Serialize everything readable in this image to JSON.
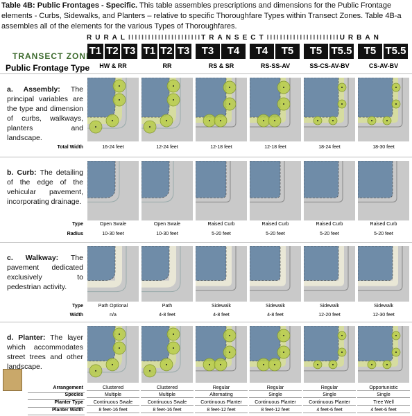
{
  "header": {
    "title": "Table 4B:  Public Frontages - Specific.",
    "text": "This table assembles prescriptions and dimensions for the Public Frontage elements - Curbs, Sidewalks, and Planters – relative to specific Thoroughfare Types within Transect Zones.  Table 4B-a assembles all of the elements for the various Types of Thoroughfares."
  },
  "transect": {
    "rural": "RURAL",
    "transect": "TRANSECT",
    "urban": "URBAN"
  },
  "zone_label": "TRANSECT ZONE",
  "frontage_label": "Public Frontage Type",
  "columns": [
    {
      "zones": [
        "T1",
        "T2",
        "T3"
      ],
      "type": "HW & RR"
    },
    {
      "zones": [
        "T1",
        "T2",
        "T3"
      ],
      "type": "RR"
    },
    {
      "zones": [
        "T3",
        "T4"
      ],
      "type": "RS & SR"
    },
    {
      "zones": [
        "T4",
        "T5"
      ],
      "type": "RS-SS-AV"
    },
    {
      "zones": [
        "T5",
        "T5.5"
      ],
      "type": "SS-CS-AV-BV"
    },
    {
      "zones": [
        "T5",
        "T5.5"
      ],
      "type": "CS-AV-BV"
    }
  ],
  "sections": [
    {
      "title": "a. Assembly:",
      "text": "The principal variables are the type and dimension of curbs, walkways, planters and landscape.",
      "rows": [
        {
          "label": "Total Width",
          "values": [
            "16-24 feet",
            "12-24 feet",
            "12-18 feet",
            "12-18 feet",
            "18-24 feet",
            "18-30 feet"
          ]
        }
      ]
    },
    {
      "title": "b. Curb:",
      "text": "The detailing of the edge of the vehicular pavement, incorporating drainage.",
      "rows": [
        {
          "label": "Type",
          "values": [
            "Open Swale",
            "Open Swale",
            "Raised Curb",
            "Raised Curb",
            "Raised Curb",
            "Raised Curb"
          ]
        },
        {
          "label": "Radius",
          "values": [
            "10-30 feet",
            "10-30 feet",
            "5-20 feet",
            "5-20 feet",
            "5-20 feet",
            "5-20 feet"
          ]
        }
      ]
    },
    {
      "title": "c. Walkway:",
      "text": "The pavement dedicated exclusively to pedestrian activity.",
      "rows": [
        {
          "label": "Type",
          "values": [
            "Path Optional",
            "Path",
            "Sidewalk",
            "Sidewalk",
            "Sidewalk",
            "Sidewalk"
          ]
        },
        {
          "label": "Width",
          "values": [
            "n/a",
            "4-8 feet",
            "4-8 feet",
            "4-8 feet",
            "12-20 feet",
            "12-30 feet"
          ]
        }
      ]
    },
    {
      "title": "d. Planter:",
      "text": "The layer which accommodates street trees and other landscape.",
      "rows": [
        {
          "label": "Arrangement",
          "values": [
            "Clustered",
            "Clustered",
            "Regular",
            "Regular",
            "Regular",
            "Opportunistic"
          ]
        },
        {
          "label": "Species",
          "values": [
            "Multiple",
            "Multiple",
            "Alternating",
            "Single",
            "Single",
            "Single"
          ]
        },
        {
          "label": "Planter Type",
          "values": [
            "Continuous Swale",
            "Continuous Swale",
            "Continuous Planter",
            "Continuous Planter",
            "Continuous Planter",
            "Tree Well"
          ]
        },
        {
          "label": "Planter Width",
          "values": [
            "8 feet-16 feet",
            "8 feet-16 feet",
            "8 feet-12 feet",
            "8 feet-12 feet",
            "4 feet-6 feet",
            "4 feet-6 feet"
          ]
        }
      ]
    }
  ]
}
